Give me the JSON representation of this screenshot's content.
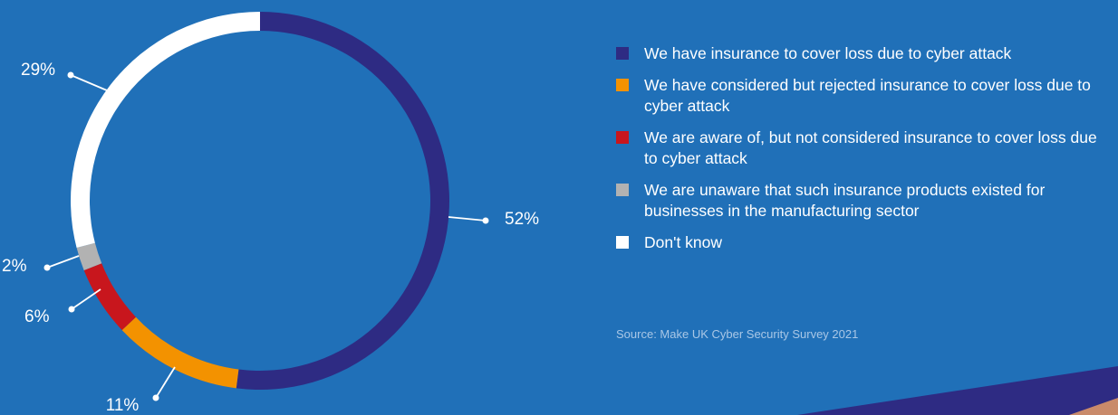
{
  "chart_data": {
    "type": "pie",
    "variant": "donut",
    "slices": [
      {
        "label": "We have insurance to cover loss due to cyber attack",
        "value": 52,
        "value_label": "52%",
        "color": "#2e2b83"
      },
      {
        "label": "We have considered but rejected insurance to cover loss due to cyber attack",
        "value": 11,
        "value_label": "11%",
        "color": "#f39200"
      },
      {
        "label": "We are aware of, but not considered insurance to cover loss due to cyber attack",
        "value": 6,
        "value_label": "6%",
        "color": "#c8161d"
      },
      {
        "label": "We are unaware that such insurance products existed for businesses in the manufacturing sector",
        "value": 2,
        "value_label": "2%",
        "color": "#b2b2b2"
      },
      {
        "label": "Don't know",
        "value": 29,
        "value_label": "29%",
        "color": "#ffffff"
      }
    ],
    "legend_position": "right"
  },
  "source": "Source: Make UK Cyber Security Survey 2021",
  "colors": {
    "background": "#2070b8",
    "label_text": "#ffffff",
    "source_text": "#a9c7e6"
  }
}
